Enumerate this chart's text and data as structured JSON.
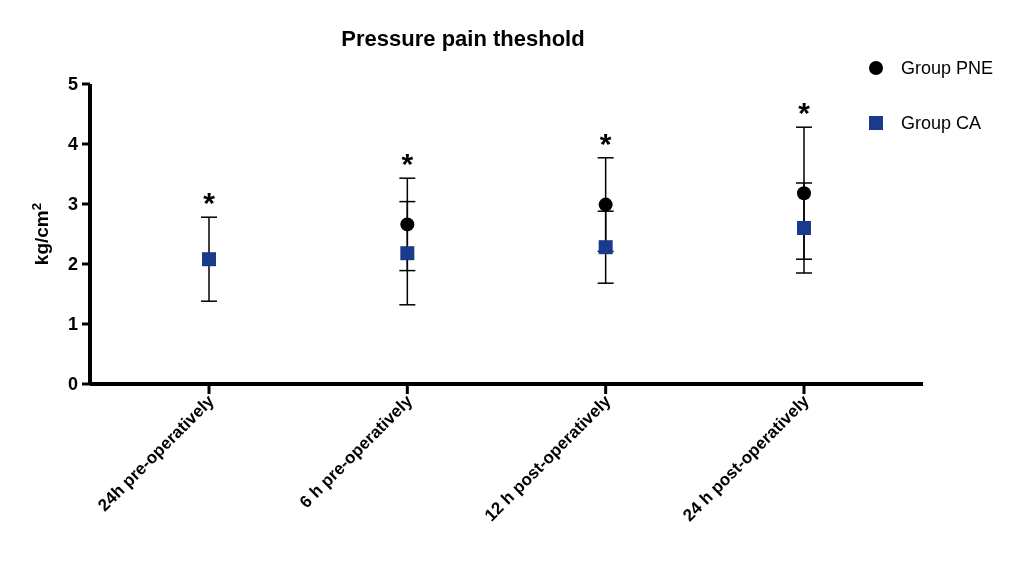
{
  "chart_data": {
    "type": "scatter",
    "title": "Pressure pain theshold",
    "ylabel": "kg/cm$^{2}$",
    "categories": [
      "24h pre-operatively",
      "6 h pre-operatively",
      "12 h post-operatively",
      "24 h post-operatively"
    ],
    "series": [
      {
        "name": "Group PNE",
        "color": "#000000",
        "marker": "circle",
        "values": [
          null,
          2.66,
          2.99,
          3.18
        ],
        "errors": [
          null,
          0.77,
          0.78,
          1.1
        ]
      },
      {
        "name": "Group CA",
        "color": "#1a3a8c",
        "marker": "square",
        "values": [
          2.08,
          2.18,
          2.28,
          2.6
        ],
        "errors": [
          0.7,
          0.86,
          0.6,
          0.75
        ]
      }
    ],
    "ylim": [
      0,
      5
    ],
    "yticks": [
      0,
      1,
      2,
      3,
      4,
      5
    ],
    "legend": "top right",
    "annotations": [
      "*",
      "*",
      "*",
      "*"
    ]
  }
}
